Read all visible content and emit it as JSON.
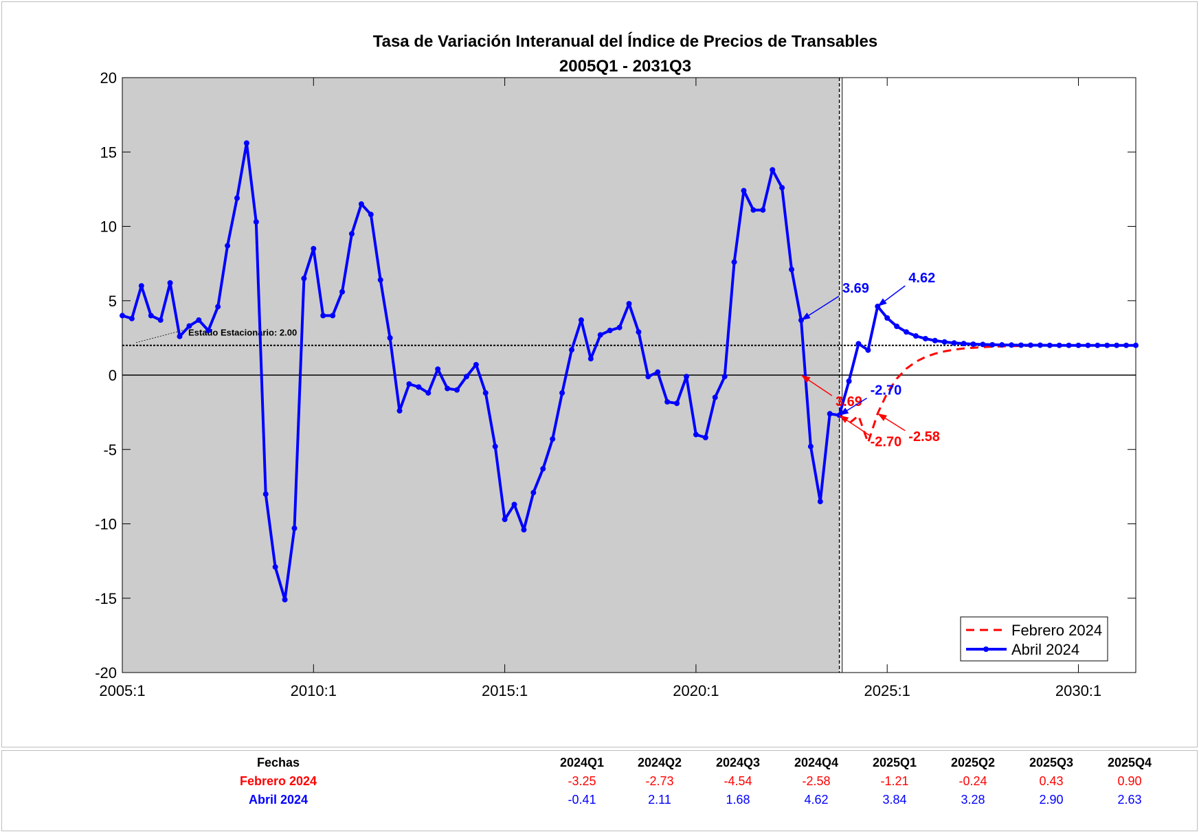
{
  "chart_data": {
    "type": "line",
    "title": "Tasa de Variación Interanual del Índice de Precios de Transables",
    "subtitle": "2005Q1 - 2031Q3",
    "xlabel": "",
    "ylabel": "",
    "ylim": [
      -20,
      20
    ],
    "yticks": [
      -20,
      -15,
      -10,
      -5,
      0,
      5,
      10,
      15,
      20
    ],
    "xtick_labels": [
      "2005:1",
      "2010:1",
      "2015:1",
      "2020:1",
      "2025:1",
      "2030:1"
    ],
    "xlim": [
      "2005Q1",
      "2031Q3"
    ],
    "grid": false,
    "legend_position": "bottom-right",
    "shaded_region": {
      "from": "2005Q1",
      "to": "2023Q4",
      "color": "#cccccc"
    },
    "vertical_line": "2023Q4",
    "steady_state": {
      "value": 2.0,
      "label": "Estado Estacionario: 2.00"
    },
    "series": [
      {
        "name": "Febrero 2024",
        "color": "#ff0000",
        "style": "dashed",
        "start": "2023Q4",
        "values": [
          -2.7,
          -3.25,
          -2.73,
          -4.54,
          -2.58,
          -1.21,
          -0.24,
          0.43,
          0.9,
          1.22,
          1.44,
          1.6,
          1.71,
          1.79,
          1.84,
          1.88,
          1.91,
          1.93,
          1.95,
          1.96,
          1.97,
          1.98,
          1.98,
          1.99,
          1.99,
          1.99,
          2.0,
          2.0,
          2.0,
          2.0,
          2.0
        ]
      },
      {
        "name": "Abril 2024",
        "color": "#0000ff",
        "style": "solid-marker",
        "start": "2005Q1",
        "values": [
          4.0,
          3.8,
          6.0,
          4.0,
          3.7,
          6.2,
          2.6,
          3.3,
          3.7,
          3.0,
          4.6,
          8.7,
          11.9,
          15.6,
          10.3,
          -8.0,
          -12.9,
          -15.1,
          -10.3,
          6.5,
          8.5,
          4.0,
          4.0,
          5.6,
          9.5,
          11.5,
          10.8,
          6.4,
          2.5,
          -2.4,
          -0.6,
          -0.8,
          -1.2,
          0.4,
          -0.9,
          -1.0,
          -0.1,
          0.7,
          -1.2,
          -4.8,
          -9.7,
          -8.7,
          -10.4,
          -7.9,
          -6.3,
          -4.3,
          -1.2,
          1.7,
          3.7,
          1.1,
          2.7,
          3.0,
          3.2,
          4.8,
          2.9,
          -0.1,
          0.2,
          -1.8,
          -1.9,
          -0.1,
          -4.0,
          -4.2,
          -1.5,
          -0.1,
          7.6,
          12.4,
          11.1,
          11.1,
          13.8,
          12.6,
          7.1,
          3.69,
          -4.8,
          -8.5,
          -2.6,
          -2.7,
          -0.41,
          2.11,
          1.68,
          4.62,
          3.84,
          3.28,
          2.9,
          2.63,
          2.45,
          2.32,
          2.23,
          2.16,
          2.12,
          2.08,
          2.06,
          2.04,
          2.03,
          2.02,
          2.01,
          2.01,
          2.01,
          2.0,
          2.0,
          2.0,
          2.0,
          2.0,
          2.0,
          2.0,
          2.0,
          2.0,
          2.0
        ]
      }
    ],
    "annotations": [
      {
        "text": "3.69",
        "color": "#0000ff",
        "at": "2022Q4"
      },
      {
        "text": "3.69",
        "color": "#ff0000",
        "at": "2022Q4"
      },
      {
        "text": "4.62",
        "color": "#0000ff",
        "at": "2024Q4"
      },
      {
        "text": "-2.70",
        "color": "#0000ff",
        "at": "2023Q4"
      },
      {
        "text": "-2.70",
        "color": "#ff0000",
        "at": "2023Q4"
      },
      {
        "text": "-2.58",
        "color": "#ff0000",
        "at": "2024Q4"
      }
    ]
  },
  "table": {
    "header_label": "Fechas",
    "columns": [
      "2024Q1",
      "2024Q2",
      "2024Q3",
      "2024Q4",
      "2025Q1",
      "2025Q2",
      "2025Q3",
      "2025Q4"
    ],
    "rows": [
      {
        "label": "Febrero 2024",
        "color": "#ff0000",
        "values": [
          "-3.25",
          "-2.73",
          "-4.54",
          "-2.58",
          "-1.21",
          "-0.24",
          "0.43",
          "0.90"
        ]
      },
      {
        "label": "Abril 2024",
        "color": "#0000ff",
        "values": [
          "-0.41",
          "2.11",
          "1.68",
          "4.62",
          "3.84",
          "3.28",
          "2.90",
          "2.63"
        ]
      }
    ]
  }
}
